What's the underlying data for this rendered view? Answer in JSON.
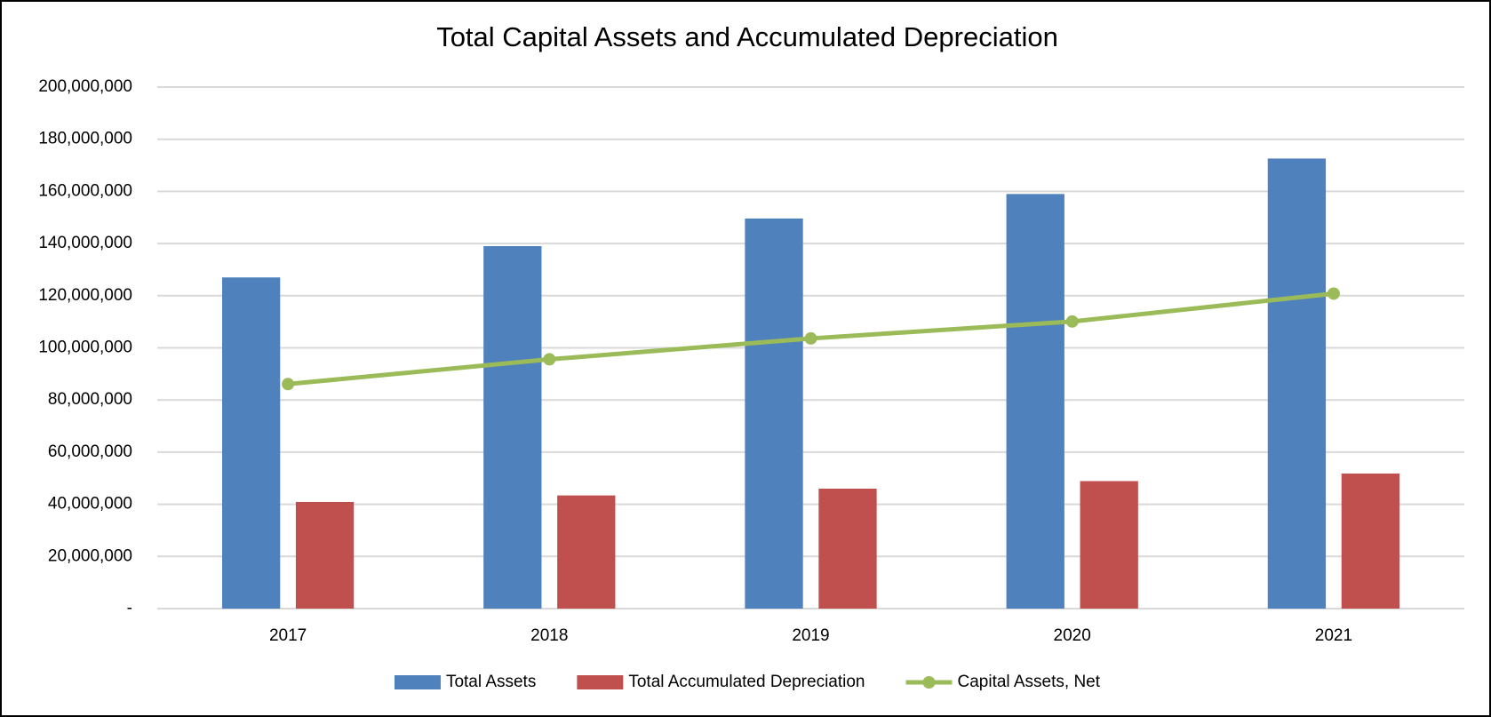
{
  "chart_data": {
    "type": "bar",
    "title": "Total Capital Assets and Accumulated Depreciation",
    "categories": [
      "2017",
      "2018",
      "2019",
      "2020",
      "2021"
    ],
    "series": [
      {
        "name": "Total Assets",
        "color": "#4f81bd",
        "type": "bar",
        "values": [
          127000000,
          139000000,
          149600000,
          159000000,
          172600000
        ]
      },
      {
        "name": "Total Accumulated Depreciation",
        "color": "#c0504d",
        "type": "bar",
        "values": [
          40900000,
          43400000,
          46000000,
          48900000,
          51800000
        ]
      },
      {
        "name": "Capital Assets, Net",
        "color": "#9bbb59",
        "type": "line",
        "values": [
          86100000,
          95600000,
          103600000,
          110100000,
          120800000
        ]
      }
    ],
    "ylim": [
      0,
      200000000
    ],
    "yticks": [
      {
        "value": 0,
        "label": "-"
      },
      {
        "value": 20000000,
        "label": "20,000,000"
      },
      {
        "value": 40000000,
        "label": "40,000,000"
      },
      {
        "value": 60000000,
        "label": "60,000,000"
      },
      {
        "value": 80000000,
        "label": "80,000,000"
      },
      {
        "value": 100000000,
        "label": "100,000,000"
      },
      {
        "value": 120000000,
        "label": "120,000,000"
      },
      {
        "value": 140000000,
        "label": "140,000,000"
      },
      {
        "value": 160000000,
        "label": "160,000,000"
      },
      {
        "value": 180000000,
        "label": "180,000,000"
      },
      {
        "value": 200000000,
        "label": "200,000,000"
      }
    ],
    "grid": true,
    "legend": "bottom"
  }
}
